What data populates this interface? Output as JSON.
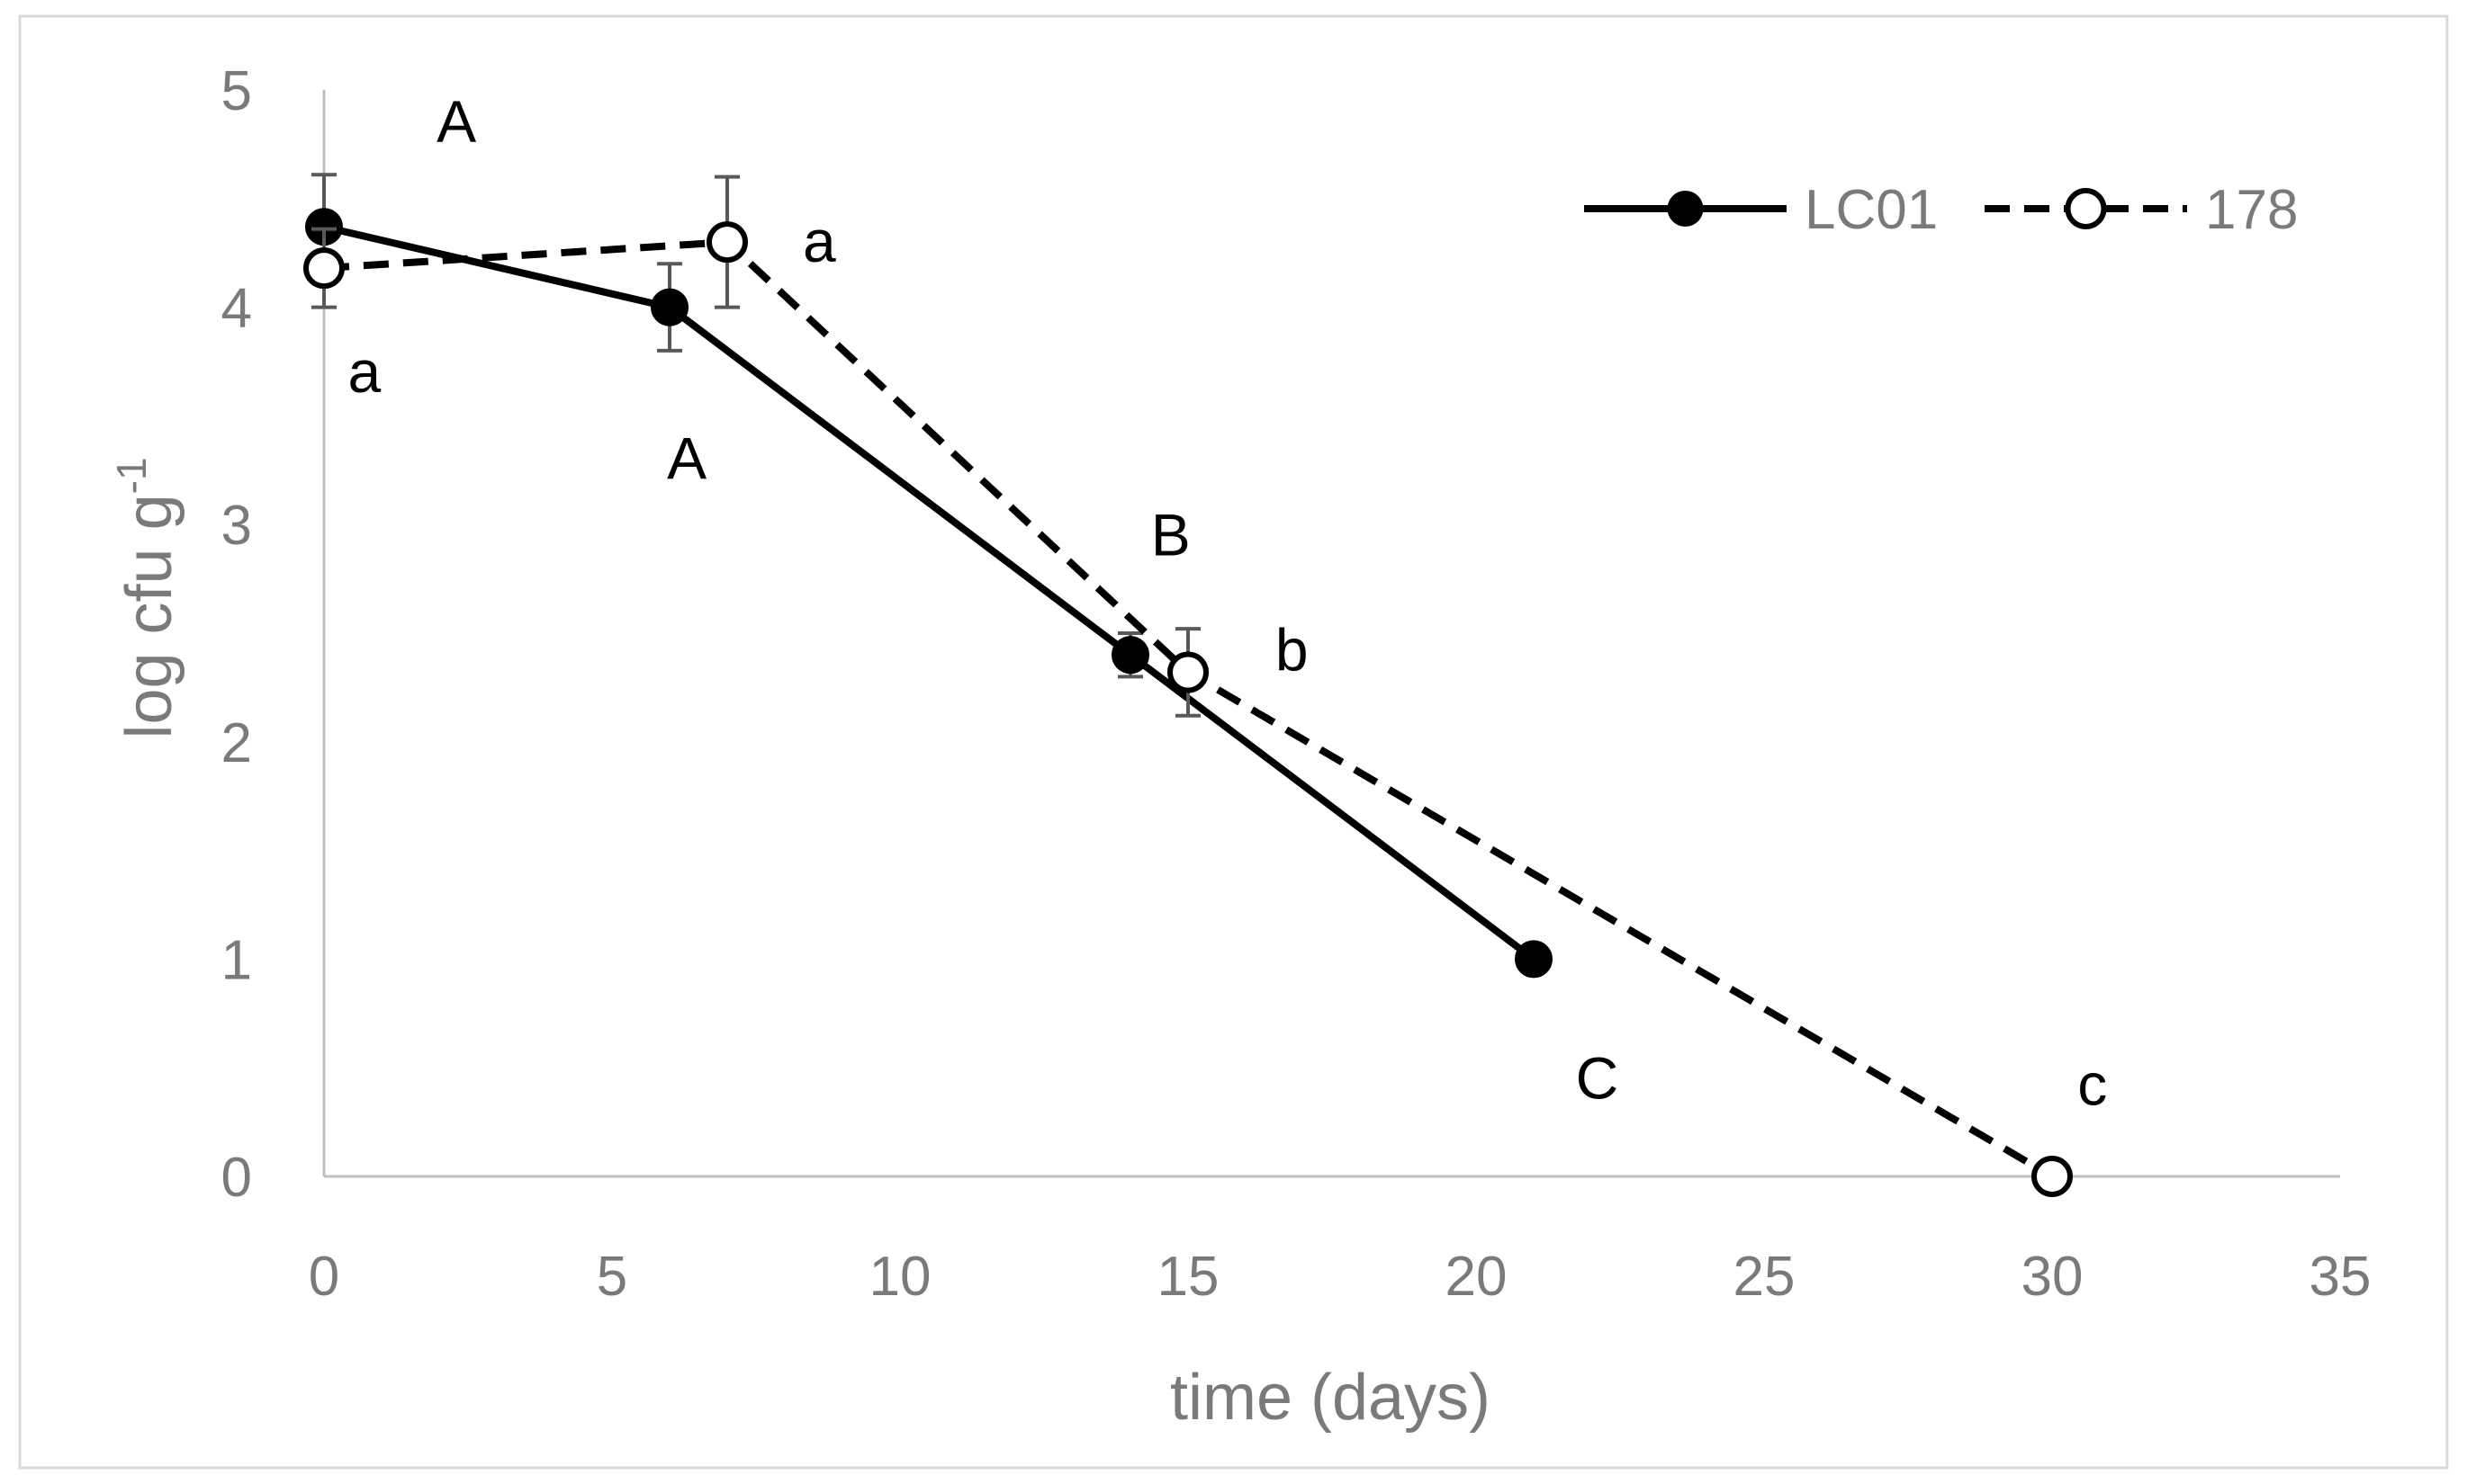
{
  "chart_data": {
    "type": "line",
    "title": "",
    "xlabel": "time (days)",
    "ylabel": "log cfu g",
    "ylabel_superscript": "-1",
    "xlim": [
      0,
      35
    ],
    "ylim": [
      0,
      5
    ],
    "xticks": [
      0,
      5,
      10,
      15,
      20,
      25,
      30,
      35
    ],
    "yticks": [
      0,
      1,
      2,
      3,
      4,
      5
    ],
    "grid": false,
    "legend_position": "top-right",
    "series": [
      {
        "name": "LC01",
        "line_style": "solid",
        "marker": "filled-circle",
        "color": "#000000",
        "x": [
          0,
          6,
          14,
          21
        ],
        "y": [
          4.37,
          4.0,
          2.4,
          1.0
        ],
        "error": [
          0.24,
          0.2,
          0.1,
          null
        ]
      },
      {
        "name": "178",
        "line_style": "dashed",
        "marker": "open-circle",
        "color": "#000000",
        "x": [
          0,
          7,
          15,
          30
        ],
        "y": [
          4.18,
          4.3,
          2.32,
          0.0
        ],
        "error": [
          0.18,
          0.3,
          0.2,
          null
        ]
      }
    ],
    "annotations": [
      {
        "text": "A",
        "x": 2.3,
        "y": 4.85
      },
      {
        "text": "a",
        "x": 0.7,
        "y": 3.7
      },
      {
        "text": "a",
        "x": 8.6,
        "y": 4.3
      },
      {
        "text": "A",
        "x": 6.3,
        "y": 3.3
      },
      {
        "text": "B",
        "x": 14.7,
        "y": 2.95
      },
      {
        "text": "b",
        "x": 16.8,
        "y": 2.42
      },
      {
        "text": "C",
        "x": 22.1,
        "y": 0.45
      },
      {
        "text": "c",
        "x": 30.7,
        "y": 0.42
      }
    ],
    "colors": {
      "axis": "#bfbfbf",
      "axis_text": "#7a7a7a",
      "error_bar": "#595959",
      "frame": "#d9d9d9"
    }
  }
}
